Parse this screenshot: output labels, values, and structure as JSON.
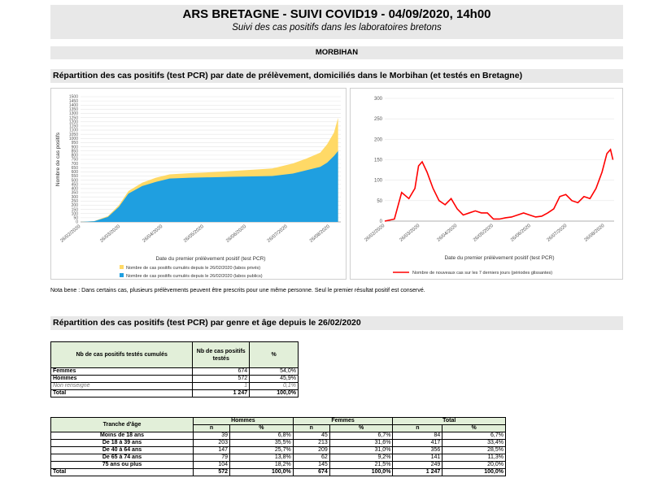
{
  "header": {
    "title": "ARS BRETAGNE - SUIVI COVID19 - 04/09/2020, 14h00",
    "subtitle": "Suivi des cas positifs dans les laboratoires bretons"
  },
  "department": "MORBIHAN",
  "section1_title": "Répartition des cas positifs (test PCR) par date de prélèvement, domiciliés dans le Morbihan (et testés en Bretagne)",
  "section2_title": "Répartition des cas positifs (test PCR) par genre et âge depuis le 26/02/2020",
  "nota": "Nota bene : Dans certains cas, plusieurs prélèvements peuvent être prescrits pour une même personne. Seul le premier résultat positif est conservé.",
  "chart_data": [
    {
      "type": "area",
      "xlabel": "Date du premier prélèvement positif (test PCR)",
      "ylabel": "Nombre de cas positifs",
      "x_ticks": [
        "26/02/2020",
        "26/03/2020",
        "26/04/2020",
        "26/05/2020",
        "26/06/2020",
        "26/07/2020",
        "26/08/2020"
      ],
      "y_ticks": [
        0,
        50,
        100,
        150,
        200,
        250,
        300,
        350,
        400,
        450,
        500,
        550,
        600,
        650,
        700,
        750,
        800,
        850,
        900,
        950,
        1000,
        1050,
        1100,
        1150,
        1200,
        1250,
        1300,
        1350,
        1400,
        1450,
        1500
      ],
      "ylim": [
        0,
        1500
      ],
      "x_days": [
        0,
        10,
        20,
        28,
        35,
        45,
        55,
        65,
        80,
        95,
        110,
        125,
        140,
        155,
        165,
        175,
        180,
        185,
        188
      ],
      "series": [
        {
          "name": "Nombre de cas positifs cumulés depuis le 26/02/2020 (labos privés)",
          "color": "#ffd966",
          "values": [
            0,
            10,
            70,
            200,
            370,
            470,
            530,
            570,
            585,
            595,
            610,
            625,
            640,
            700,
            760,
            830,
            930,
            1070,
            1247
          ]
        },
        {
          "name": "Nombre de cas positifs cumulés depuis le 26/02/2020 (labos publics)",
          "color": "#1f9fe0",
          "values": [
            0,
            8,
            60,
            180,
            340,
            430,
            480,
            520,
            530,
            535,
            540,
            545,
            550,
            580,
            620,
            660,
            710,
            790,
            850
          ]
        }
      ],
      "legend": "bottom"
    },
    {
      "type": "line",
      "xlabel": "Date du premier prélèvement positif (test PCR)",
      "x_ticks": [
        "26/02/2020",
        "26/03/2020",
        "26/04/2020",
        "26/05/2020",
        "26/06/2020",
        "26/07/2020",
        "26/08/2020"
      ],
      "y_ticks": [
        0,
        50,
        100,
        150,
        200,
        250,
        300
      ],
      "ylim": [
        0,
        300
      ],
      "x_days": [
        0,
        8,
        14,
        20,
        25,
        28,
        31,
        35,
        40,
        45,
        50,
        55,
        60,
        65,
        70,
        75,
        80,
        85,
        90,
        95,
        100,
        105,
        110,
        115,
        120,
        125,
        130,
        135,
        140,
        145,
        150,
        155,
        160,
        165,
        170,
        175,
        180,
        184,
        187,
        189
      ],
      "series": [
        {
          "name": "Nombre de nouveaux cas sur les 7 derniers jours (périodes glissantes)",
          "color": "#ff0000",
          "values": [
            0,
            5,
            70,
            55,
            80,
            135,
            145,
            120,
            80,
            50,
            40,
            55,
            30,
            15,
            20,
            25,
            20,
            20,
            5,
            5,
            8,
            10,
            15,
            20,
            15,
            10,
            12,
            20,
            30,
            60,
            65,
            50,
            45,
            60,
            55,
            80,
            120,
            165,
            175,
            150
          ]
        }
      ],
      "legend": "bottom"
    }
  ],
  "table_genre": {
    "headers": [
      "Nb de cas positifs testés cumulés",
      "Nb de cas positifs testés",
      "%"
    ],
    "rows": [
      {
        "label": "Femmes",
        "n": "674",
        "pct": "54,0%"
      },
      {
        "label": "Hommes",
        "n": "572",
        "pct": "45,9%"
      },
      {
        "label": "Non renseigné",
        "n": "1",
        "pct": "0,1%"
      },
      {
        "label": "Total",
        "n": "1 247",
        "pct": "100,0%"
      }
    ]
  },
  "table_age": {
    "header_age": "Tranche d'âge",
    "groups": [
      "Hommes",
      "Femmes",
      "Total"
    ],
    "sub_n": "n",
    "sub_pct": "%",
    "rows": [
      {
        "label": "Moins de 18 ans",
        "h_n": "39",
        "h_p": "6,8%",
        "f_n": "45",
        "f_p": "6,7%",
        "t_n": "84",
        "t_p": "6,7%"
      },
      {
        "label": "De 18 à 39 ans",
        "h_n": "203",
        "h_p": "35,5%",
        "f_n": "213",
        "f_p": "31,6%",
        "t_n": "417",
        "t_p": "33,4%"
      },
      {
        "label": "De 40 à 64 ans",
        "h_n": "147",
        "h_p": "25,7%",
        "f_n": "209",
        "f_p": "31,0%",
        "t_n": "356",
        "t_p": "28,5%"
      },
      {
        "label": "De 65 à 74 ans",
        "h_n": "79",
        "h_p": "13,8%",
        "f_n": "62",
        "f_p": "9,2%",
        "t_n": "141",
        "t_p": "11,3%"
      },
      {
        "label": "75 ans ou plus",
        "h_n": "104",
        "h_p": "18,2%",
        "f_n": "145",
        "f_p": "21,5%",
        "t_n": "249",
        "t_p": "20,0%"
      }
    ],
    "total": {
      "label": "Total",
      "h_n": "572",
      "h_p": "100,0%",
      "f_n": "674",
      "f_p": "100,0%",
      "t_n": "1 247",
      "t_p": "100,0%"
    }
  }
}
